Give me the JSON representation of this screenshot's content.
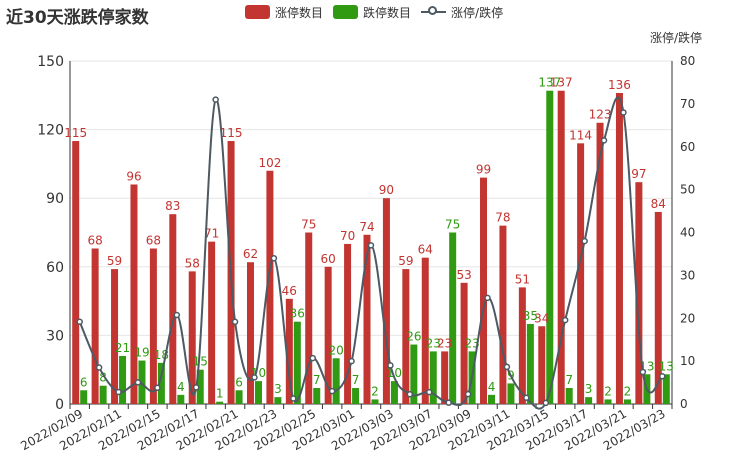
{
  "title": "近30天涨跌停家数",
  "legend": {
    "up_label": "涨停数目",
    "down_label": "跌停数目",
    "ratio_label": "涨停/跌停"
  },
  "colors": {
    "up": "#c23531",
    "down": "#2f9a12",
    "line": "#4d5a64"
  },
  "chart_data": {
    "type": "bar",
    "dates": [
      "2022/02/09",
      "2022/02/10",
      "2022/02/11",
      "2022/02/14",
      "2022/02/15",
      "2022/02/16",
      "2022/02/17",
      "2022/02/18",
      "2022/02/21",
      "2022/02/22",
      "2022/02/23",
      "2022/02/24",
      "2022/02/25",
      "2022/02/28",
      "2022/03/01",
      "2022/03/02",
      "2022/03/03",
      "2022/03/04",
      "2022/03/07",
      "2022/03/08",
      "2022/03/09",
      "2022/03/10",
      "2022/03/11",
      "2022/03/14",
      "2022/03/15",
      "2022/03/16",
      "2022/03/17",
      "2022/03/18",
      "2022/03/21",
      "2022/03/22",
      "2022/03/23"
    ],
    "x_tick_labels": [
      "2022/02/09",
      "2022/02/11",
      "2022/02/15",
      "2022/02/17",
      "2022/02/21",
      "2022/02/23",
      "2022/02/25",
      "2022/03/01",
      "2022/03/03",
      "2022/03/07",
      "2022/03/09",
      "2022/03/11",
      "2022/03/15",
      "2022/03/17",
      "2022/03/21",
      "2022/03/23"
    ],
    "x_tick_indices": [
      0,
      2,
      4,
      6,
      8,
      10,
      12,
      14,
      16,
      18,
      20,
      22,
      24,
      26,
      28,
      30
    ],
    "series": [
      {
        "name": "涨停数目",
        "values": [
          115,
          68,
          59,
          96,
          68,
          83,
          58,
          71,
          115,
          62,
          102,
          46,
          75,
          60,
          70,
          74,
          90,
          59,
          64,
          23,
          53,
          99,
          78,
          51,
          34,
          137,
          114,
          123,
          136,
          97,
          84
        ]
      },
      {
        "name": "跌停数目",
        "values": [
          6,
          8,
          21,
          19,
          18,
          4,
          15,
          1,
          6,
          10,
          3,
          36,
          7,
          20,
          7,
          2,
          10,
          26,
          23,
          75,
          23,
          4,
          9,
          35,
          137,
          7,
          3,
          2,
          2,
          13,
          13
        ]
      },
      {
        "name": "涨停/跌停",
        "values": [
          19.17,
          8.5,
          2.81,
          5.05,
          3.78,
          20.75,
          3.87,
          71,
          19.17,
          6.2,
          34,
          1.28,
          10.71,
          3,
          10,
          37,
          9,
          2.27,
          2.78,
          0.31,
          2.3,
          24.75,
          8.67,
          1.46,
          0.25,
          19.57,
          38,
          61.5,
          68,
          7.46,
          6.46
        ]
      }
    ],
    "y_left": {
      "min": 0,
      "max": 150,
      "ticks": [
        0,
        30,
        60,
        90,
        120,
        150
      ]
    },
    "y_right": {
      "min": 0,
      "max": 80,
      "ticks": [
        0,
        10,
        20,
        30,
        40,
        50,
        60,
        70,
        80
      ],
      "label": "涨停/跌停"
    }
  }
}
